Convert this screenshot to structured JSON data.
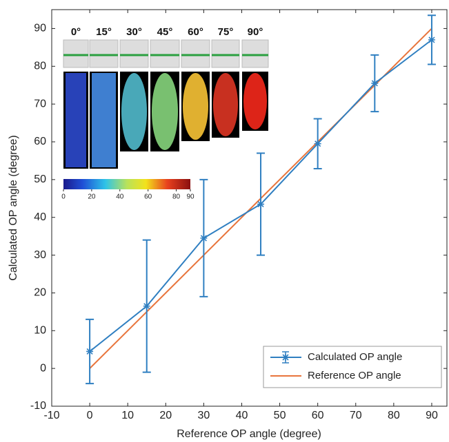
{
  "chart_data": {
    "type": "line",
    "xlabel": "Reference OP angle (degree)",
    "ylabel": "Calculated OP angle (degree)",
    "xlim": [
      -10,
      94
    ],
    "ylim": [
      -10,
      95
    ],
    "xticks": [
      -10,
      0,
      10,
      20,
      30,
      40,
      50,
      60,
      70,
      80,
      90
    ],
    "yticks": [
      -10,
      0,
      10,
      20,
      30,
      40,
      50,
      60,
      70,
      80,
      90
    ],
    "legend": "lower right",
    "series": [
      {
        "name": "Calculated OP angle",
        "color": "#2f7fc1",
        "marker": "star",
        "x": [
          0,
          15,
          30,
          45,
          60,
          75,
          90
        ],
        "values": [
          4.5,
          16.5,
          34.5,
          43.5,
          59.5,
          75.5,
          87
        ],
        "errors": [
          8.5,
          17.5,
          15.5,
          13.5,
          6.6,
          7.5,
          6.5
        ]
      },
      {
        "name": "Reference OP angle",
        "color": "#e8743b",
        "x": [
          0,
          90
        ],
        "values": [
          0,
          90
        ]
      }
    ],
    "inset": {
      "angles": [
        "0°",
        "15°",
        "30°",
        "45°",
        "60°",
        "75°",
        "90°"
      ],
      "colorbar_lim": [
        0,
        90
      ],
      "colorbar_ticks": [
        0,
        20,
        40,
        60,
        80,
        90
      ]
    }
  }
}
